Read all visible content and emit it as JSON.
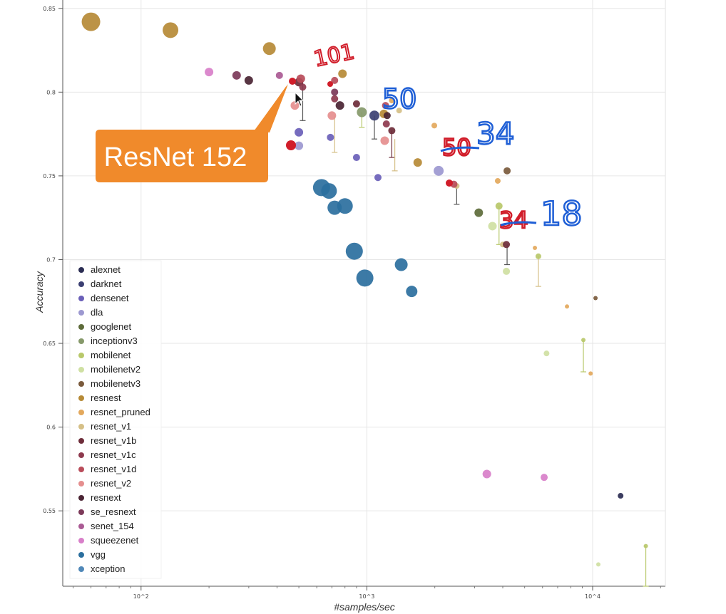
{
  "chart_data": {
    "type": "scatter",
    "title": "",
    "xlabel": "#samples/sec",
    "ylabel": "Accuracy",
    "x_scale": "log",
    "xlim": [
      45,
      21000
    ],
    "ylim": [
      0.505,
      0.855
    ],
    "x_ticks": [
      {
        "value": 100,
        "label": "10^2"
      },
      {
        "value": 1000,
        "label": "10^3"
      },
      {
        "value": 10000,
        "label": "10^4"
      }
    ],
    "y_ticks": [
      {
        "value": 0.55,
        "label": "0.55"
      },
      {
        "value": 0.6,
        "label": "0.6"
      },
      {
        "value": 0.65,
        "label": "0.65"
      },
      {
        "value": 0.7,
        "label": "0.7"
      },
      {
        "value": 0.75,
        "label": "0.75"
      },
      {
        "value": 0.8,
        "label": "0.8"
      },
      {
        "value": 0.85,
        "label": "0.85"
      }
    ],
    "grid": true,
    "legend_position": "bottom-left",
    "series": [
      {
        "name": "alexnet",
        "color": "#2b2d53",
        "points": [
          [
            13300,
            0.559,
            4
          ]
        ]
      },
      {
        "name": "darknet",
        "color": "#3b3f72",
        "points": [
          [
            1080,
            0.786,
            7
          ]
        ]
      },
      {
        "name": "densenet",
        "color": "#6a5fb8",
        "points": [
          [
            500,
            0.776,
            6
          ],
          [
            690,
            0.773,
            5
          ],
          [
            900,
            0.761,
            5
          ],
          [
            1120,
            0.749,
            5
          ]
        ]
      },
      {
        "name": "dla",
        "color": "#9c98d0",
        "points": [
          [
            2080,
            0.753,
            7
          ],
          [
            500,
            0.768,
            6
          ]
        ]
      },
      {
        "name": "googlenet",
        "color": "#5d6b3a",
        "points": [
          [
            3130,
            0.728,
            6
          ]
        ]
      },
      {
        "name": "inceptionv3",
        "color": "#86996a",
        "points": [
          [
            950,
            0.788,
            7
          ]
        ]
      },
      {
        "name": "mobilenet",
        "color": "#b8c86a",
        "points": [
          [
            3850,
            0.732,
            5
          ],
          [
            5750,
            0.702,
            4
          ],
          [
            9100,
            0.652,
            3
          ],
          [
            17200,
            0.529,
            3
          ]
        ]
      },
      {
        "name": "mobilenetv2",
        "color": "#cfe0a2",
        "points": [
          [
            3600,
            0.72,
            6
          ],
          [
            4150,
            0.693,
            5
          ],
          [
            6250,
            0.644,
            4
          ],
          [
            10600,
            0.518,
            3
          ]
        ]
      },
      {
        "name": "mobilenetv3",
        "color": "#7a5a3c",
        "points": [
          [
            4180,
            0.753,
            5
          ],
          [
            10300,
            0.677,
            3
          ]
        ]
      },
      {
        "name": "resnest",
        "color": "#b68a36",
        "points": [
          [
            60,
            0.842,
            13
          ],
          [
            135,
            0.837,
            11
          ],
          [
            370,
            0.826,
            9
          ],
          [
            780,
            0.811,
            6
          ],
          [
            1190,
            0.787,
            6
          ],
          [
            1680,
            0.758,
            6
          ]
        ]
      },
      {
        "name": "resnet_pruned",
        "color": "#e3a85c",
        "points": [
          [
            1290,
            0.795,
            4
          ],
          [
            1990,
            0.78,
            4
          ],
          [
            3800,
            0.747,
            4
          ],
          [
            5550,
            0.707,
            3
          ],
          [
            7700,
            0.672,
            3
          ],
          [
            9800,
            0.632,
            3
          ]
        ]
      },
      {
        "name": "resnet_v1",
        "color": "#d5bf86",
        "points": [
          [
            1390,
            0.789,
            4
          ],
          [
            2500,
            0.744,
            4
          ],
          [
            4000,
            0.709,
            4
          ]
        ]
      },
      {
        "name": "resnet_v1b",
        "color": "#6e2d3a",
        "points": [
          [
            500,
            0.806,
            6
          ],
          [
            900,
            0.793,
            5
          ],
          [
            1290,
            0.777,
            5
          ],
          [
            4150,
            0.709,
            5
          ]
        ]
      },
      {
        "name": "resnet_v1c",
        "color": "#8e3a4e",
        "points": [
          [
            520,
            0.803,
            5
          ],
          [
            720,
            0.796,
            5
          ],
          [
            1220,
            0.781,
            5
          ]
        ]
      },
      {
        "name": "resnet_v1d",
        "color": "#b94c5a",
        "points": [
          [
            510,
            0.808,
            6
          ],
          [
            720,
            0.807,
            5
          ],
          [
            1210,
            0.792,
            5
          ],
          [
            2430,
            0.745,
            5
          ]
        ]
      },
      {
        "name": "resnet_v2",
        "color": "#e58e8e",
        "points": [
          [
            480,
            0.792,
            6
          ],
          [
            700,
            0.786,
            6
          ],
          [
            1200,
            0.771,
            6
          ]
        ]
      },
      {
        "name": "resnext",
        "color": "#4a2433",
        "points": [
          [
            300,
            0.807,
            6
          ],
          [
            760,
            0.792,
            6
          ],
          [
            1230,
            0.786,
            5
          ]
        ]
      },
      {
        "name": "se_resnext",
        "color": "#7c3a59",
        "points": [
          [
            265,
            0.81,
            6
          ],
          [
            720,
            0.8,
            5
          ]
        ]
      },
      {
        "name": "senet_154",
        "color": "#aa5a94",
        "points": [
          [
            410,
            0.81,
            5
          ]
        ]
      },
      {
        "name": "squeezenet",
        "color": "#d87fc9",
        "points": [
          [
            200,
            0.812,
            6
          ],
          [
            3400,
            0.572,
            6
          ],
          [
            6100,
            0.57,
            5
          ]
        ]
      },
      {
        "name": "vgg",
        "color": "#2b6f9e",
        "points": [
          [
            630,
            0.743,
            12
          ],
          [
            680,
            0.741,
            11
          ],
          [
            720,
            0.731,
            10
          ],
          [
            800,
            0.732,
            11
          ],
          [
            880,
            0.705,
            12
          ],
          [
            980,
            0.689,
            12
          ],
          [
            1420,
            0.697,
            9
          ],
          [
            1580,
            0.681,
            8
          ]
        ]
      },
      {
        "name": "xception",
        "color": "#5088b8",
        "points": []
      }
    ],
    "error_bars": [
      {
        "x": 520,
        "y_top": 0.807,
        "y_bottom": 0.783,
        "color": "#555555"
      },
      {
        "x": 720,
        "y_top": 0.786,
        "y_bottom": 0.764,
        "color": "#d5bf86"
      },
      {
        "x": 950,
        "y_top": 0.788,
        "y_bottom": 0.779,
        "color": "#b8c86a"
      },
      {
        "x": 1080,
        "y_top": 0.786,
        "y_bottom": 0.772,
        "color": "#555555"
      },
      {
        "x": 1290,
        "y_top": 0.777,
        "y_bottom": 0.761,
        "color": "#6e2d3a"
      },
      {
        "x": 1330,
        "y_top": 0.772,
        "y_bottom": 0.753,
        "color": "#d5bf86"
      },
      {
        "x": 2500,
        "y_top": 0.746,
        "y_bottom": 0.733,
        "color": "#555555"
      },
      {
        "x": 3850,
        "y_top": 0.732,
        "y_bottom": 0.709,
        "color": "#b8c86a"
      },
      {
        "x": 4180,
        "y_top": 0.709,
        "y_bottom": 0.697,
        "color": "#555555"
      },
      {
        "x": 5750,
        "y_top": 0.702,
        "y_bottom": 0.684,
        "color": "#d5bf86"
      },
      {
        "x": 9100,
        "y_top": 0.652,
        "y_bottom": 0.633,
        "color": "#b8c86a"
      },
      {
        "x": 17200,
        "y_top": 0.529,
        "y_bottom": 0.505,
        "color": "#b8c86a"
      }
    ],
    "annotations": {
      "callout": "ResNet 152",
      "handwritten": [
        {
          "text": "101",
          "color": "#d11d2a"
        },
        {
          "text": "50",
          "color": "#1f5fd6"
        },
        {
          "text": "50",
          "color": "#d11d2a"
        },
        {
          "text": "34",
          "color": "#1f5fd6"
        },
        {
          "text": "34",
          "color": "#d11d2a"
        },
        {
          "text": "18",
          "color": "#1f5fd6"
        }
      ]
    }
  }
}
